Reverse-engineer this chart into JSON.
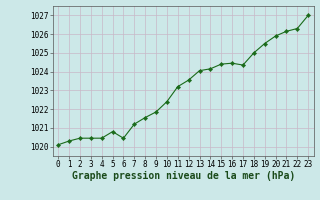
{
  "x": [
    0,
    1,
    2,
    3,
    4,
    5,
    6,
    7,
    8,
    9,
    10,
    11,
    12,
    13,
    14,
    15,
    16,
    17,
    18,
    19,
    20,
    21,
    22,
    23
  ],
  "y": [
    1020.1,
    1020.3,
    1020.45,
    1020.45,
    1020.45,
    1020.8,
    1020.45,
    1021.2,
    1021.55,
    1021.85,
    1022.4,
    1023.2,
    1023.55,
    1024.05,
    1024.15,
    1024.4,
    1024.45,
    1024.35,
    1025.0,
    1025.5,
    1025.9,
    1026.15,
    1026.3,
    1027.0
  ],
  "line_color": "#1a6b1a",
  "marker_color": "#1a6b1a",
  "bg_color": "#cce8e8",
  "grid_color_v": "#c8b8c8",
  "grid_color_h": "#c8b8c8",
  "xlabel": "Graphe pression niveau de la mer (hPa)",
  "ylim": [
    1019.5,
    1027.5
  ],
  "xlim": [
    -0.5,
    23.5
  ],
  "yticks": [
    1020,
    1021,
    1022,
    1023,
    1024,
    1025,
    1026,
    1027
  ],
  "xticks": [
    0,
    1,
    2,
    3,
    4,
    5,
    6,
    7,
    8,
    9,
    10,
    11,
    12,
    13,
    14,
    15,
    16,
    17,
    18,
    19,
    20,
    21,
    22,
    23
  ],
  "tick_fontsize": 5.5,
  "xlabel_fontsize": 7.0
}
